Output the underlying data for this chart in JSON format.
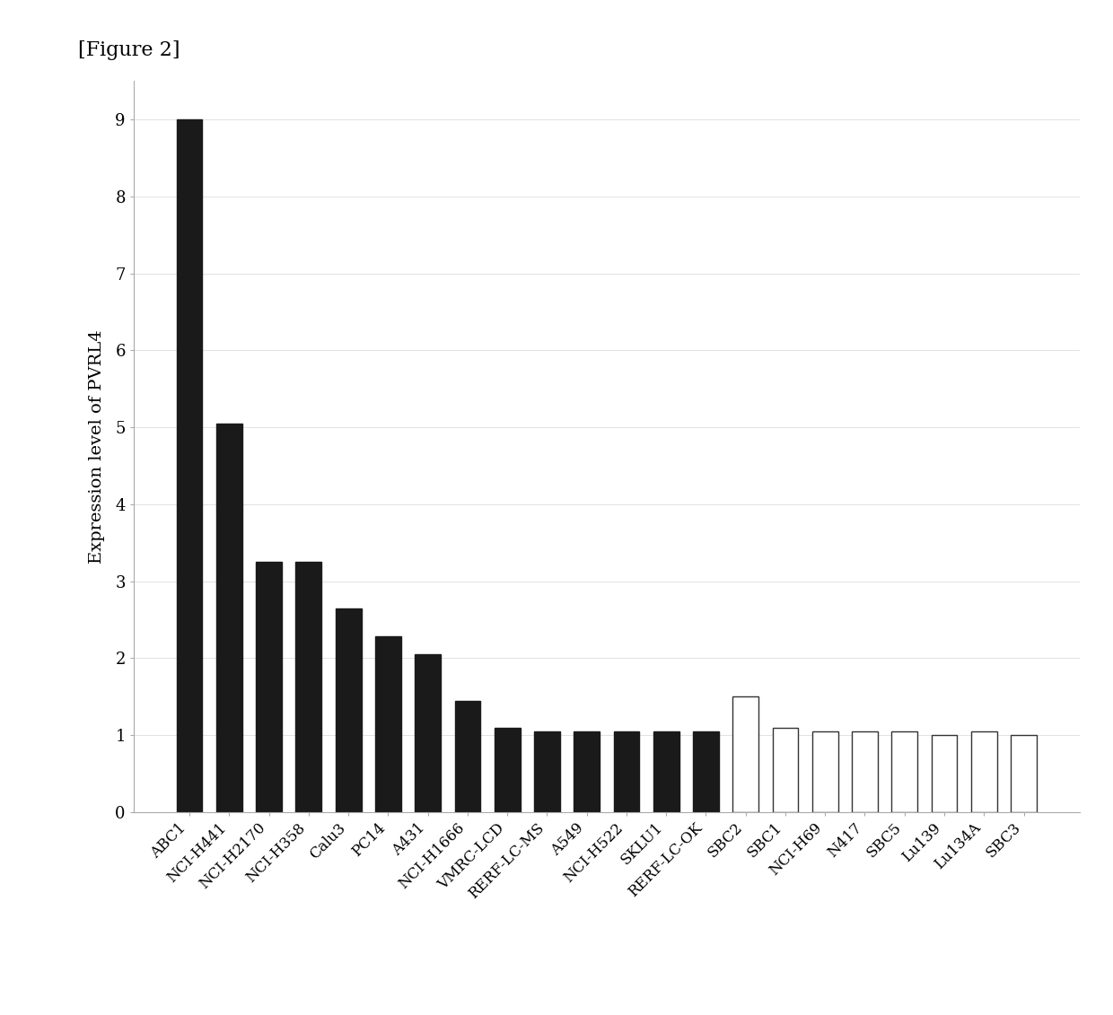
{
  "categories": [
    "ABC1",
    "NCI-H441",
    "NCI-H2170",
    "NCI-H358",
    "Calu3",
    "PC14",
    "A431",
    "NCI-H1666",
    "VMRC-LCD",
    "RERF-LC-MS",
    "A549",
    "NCI-H522",
    "SKLU1",
    "RERF-LC-OK",
    "SBC2",
    "SBC1",
    "NCI-H69",
    "N417",
    "SBC5",
    "Lu139",
    "Lu134A",
    "SBC3"
  ],
  "values": [
    9.0,
    5.05,
    3.25,
    3.25,
    2.65,
    2.28,
    2.05,
    1.45,
    1.1,
    1.05,
    1.05,
    1.05,
    1.05,
    1.05,
    1.5,
    1.1,
    1.05,
    1.05,
    1.05,
    1.0,
    1.05,
    1.0
  ],
  "colors": [
    "#1a1a1a",
    "#1a1a1a",
    "#1a1a1a",
    "#1a1a1a",
    "#1a1a1a",
    "#1a1a1a",
    "#1a1a1a",
    "#1a1a1a",
    "#1a1a1a",
    "#1a1a1a",
    "#1a1a1a",
    "#1a1a1a",
    "#1a1a1a",
    "#1a1a1a",
    "#ffffff",
    "#ffffff",
    "#ffffff",
    "#ffffff",
    "#ffffff",
    "#ffffff",
    "#ffffff",
    "#ffffff"
  ],
  "edge_colors": [
    "#1a1a1a",
    "#1a1a1a",
    "#1a1a1a",
    "#1a1a1a",
    "#1a1a1a",
    "#1a1a1a",
    "#1a1a1a",
    "#1a1a1a",
    "#1a1a1a",
    "#1a1a1a",
    "#1a1a1a",
    "#1a1a1a",
    "#1a1a1a",
    "#1a1a1a",
    "#333333",
    "#333333",
    "#333333",
    "#333333",
    "#333333",
    "#333333",
    "#333333",
    "#333333"
  ],
  "ylabel": "Expression level of PVRL4",
  "ylim": [
    0,
    9.5
  ],
  "yticks": [
    0,
    1,
    2,
    3,
    4,
    5,
    6,
    7,
    8,
    9
  ],
  "title": "[Figure 2]",
  "background_color": "#ffffff",
  "bar_width": 0.65,
  "figsize": [
    12.4,
    11.31
  ],
  "dpi": 100
}
